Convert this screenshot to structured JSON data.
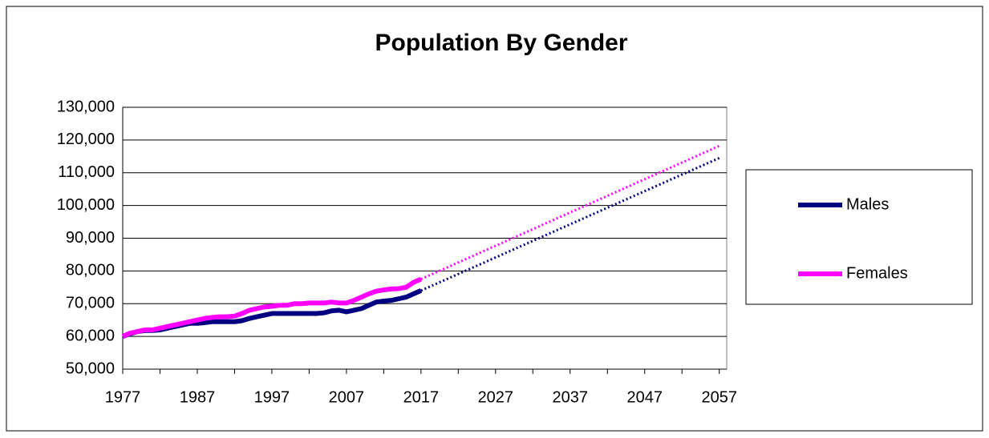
{
  "chart_data": {
    "type": "line",
    "title": "Population By Gender",
    "x": [
      1977,
      1978,
      1979,
      1980,
      1981,
      1982,
      1983,
      1984,
      1985,
      1986,
      1987,
      1988,
      1989,
      1990,
      1991,
      1992,
      1993,
      1994,
      1995,
      1996,
      1997,
      1998,
      1999,
      2000,
      2001,
      2002,
      2003,
      2004,
      2005,
      2006,
      2007,
      2008,
      2009,
      2010,
      2011,
      2012,
      2013,
      2014,
      2015,
      2016,
      2017
    ],
    "series": [
      {
        "name": "Males",
        "color": "#000080",
        "values": [
          60000,
          60800,
          61500,
          61800,
          61800,
          62000,
          62500,
          63000,
          63500,
          64000,
          64000,
          64200,
          64500,
          64500,
          64500,
          64500,
          64800,
          65500,
          66000,
          66500,
          67000,
          67000,
          67000,
          67000,
          67000,
          67000,
          67000,
          67200,
          67800,
          68000,
          67500,
          68000,
          68500,
          69500,
          70500,
          70800,
          71000,
          71500,
          72000,
          73000,
          74000
        ],
        "trendline": {
          "x": [
            2017,
            2057
          ],
          "values": [
            74000,
            114500
          ]
        }
      },
      {
        "name": "Females",
        "color": "#ff00ff",
        "values": [
          60000,
          61000,
          61500,
          62000,
          62000,
          62500,
          63000,
          63500,
          64000,
          64500,
          65000,
          65500,
          65800,
          66000,
          66000,
          66200,
          67000,
          68000,
          68500,
          69000,
          69200,
          69500,
          69500,
          70000,
          70000,
          70200,
          70200,
          70200,
          70500,
          70200,
          70200,
          71000,
          72000,
          73000,
          73800,
          74200,
          74500,
          74600,
          75000,
          76500,
          77500
        ],
        "trendline": {
          "x": [
            2017,
            2057
          ],
          "values": [
            77500,
            118200
          ]
        }
      }
    ],
    "xlim": [
      1977,
      2058
    ],
    "xticks": [
      1977,
      1987,
      1997,
      2007,
      2017,
      2027,
      2037,
      2047,
      2057
    ],
    "xticks_minor": [
      1982,
      1992,
      2002,
      2012,
      2022,
      2032,
      2042,
      2052
    ],
    "ylim": [
      50000,
      130000
    ],
    "yticks": [
      {
        "value": 50000,
        "label": "50,000"
      },
      {
        "value": 60000,
        "label": "60,000"
      },
      {
        "value": 70000,
        "label": "70,000"
      },
      {
        "value": 80000,
        "label": "80,000"
      },
      {
        "value": 90000,
        "label": "90,000"
      },
      {
        "value": 100000,
        "label": "100,000"
      },
      {
        "value": 110000,
        "label": "110,000"
      },
      {
        "value": 120000,
        "label": "120,000"
      },
      {
        "value": 130000,
        "label": "130,000"
      }
    ],
    "grid": true,
    "legend": "right"
  }
}
